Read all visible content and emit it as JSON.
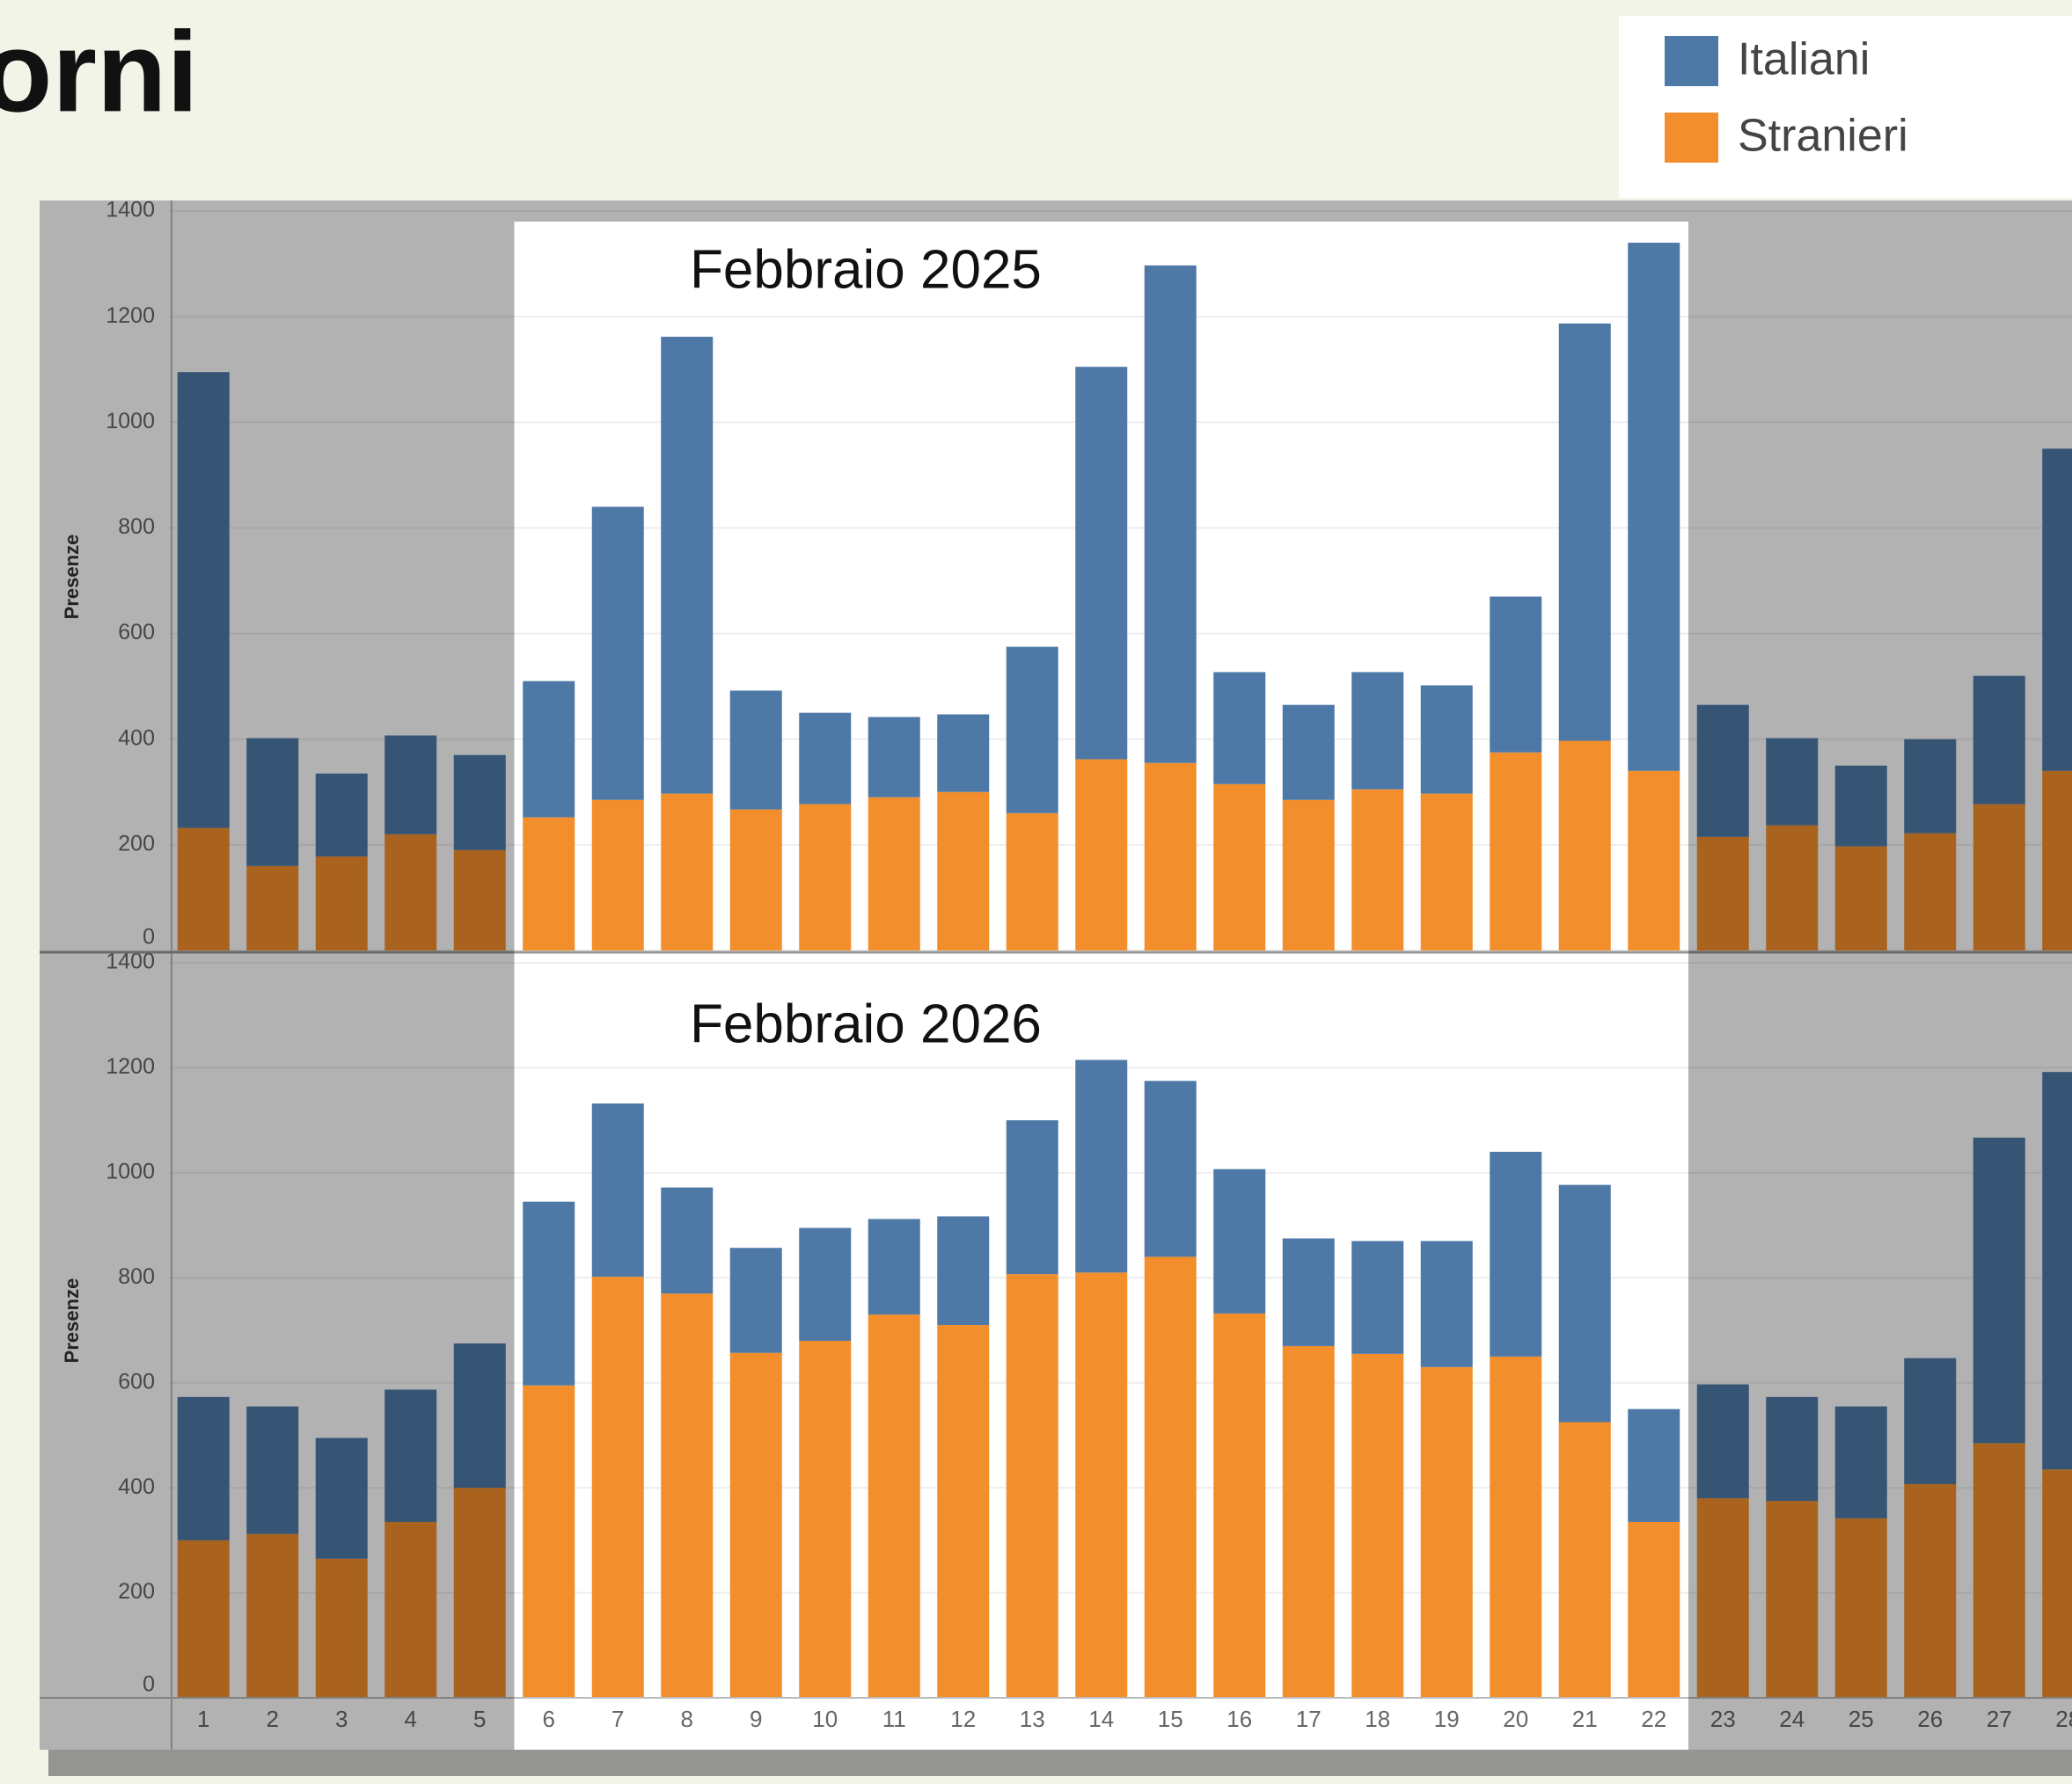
{
  "title": "orni",
  "chart_data": [
    {
      "type": "bar-stacked",
      "subtitle": "Febbraio 2025",
      "ylabel": "Presenze",
      "categories": [
        "1",
        "2",
        "3",
        "4",
        "5",
        "6",
        "7",
        "8",
        "9",
        "10",
        "11",
        "12",
        "13",
        "14",
        "15",
        "16",
        "17",
        "18",
        "19",
        "20",
        "21",
        "22",
        "23",
        "24",
        "25",
        "26",
        "27",
        "28"
      ],
      "highlight": [
        "6",
        "22"
      ],
      "series": [
        {
          "name": "Italiani",
          "color": "#4e79a7",
          "values": [
            863,
            242,
            157,
            187,
            180,
            258,
            555,
            865,
            225,
            173,
            152,
            147,
            315,
            743,
            942,
            212,
            180,
            222,
            205,
            295,
            790,
            1000,
            250,
            165,
            153,
            178,
            243,
            610
          ]
        },
        {
          "name": "Stranieri",
          "color": "#f28e2b",
          "values": [
            232,
            160,
            178,
            220,
            190,
            252,
            285,
            297,
            267,
            277,
            290,
            300,
            260,
            362,
            355,
            315,
            285,
            305,
            297,
            375,
            397,
            340,
            215,
            237,
            197,
            222,
            277,
            340
          ]
        }
      ],
      "ylim": [
        0,
        1400
      ],
      "yticks": [
        0,
        200,
        400,
        600,
        800,
        1000,
        1200,
        1400
      ],
      "grid": true
    },
    {
      "type": "bar-stacked",
      "subtitle": "Febbraio 2026",
      "ylabel": "Presenze",
      "highlight": [
        "6",
        "22"
      ],
      "series": [
        {
          "name": "Italiani",
          "color": "#4e79a7",
          "values": [
            273,
            243,
            230,
            252,
            275,
            350,
            330,
            202,
            200,
            215,
            182,
            207,
            293,
            405,
            335,
            275,
            205,
            215,
            240,
            390,
            452,
            215,
            217,
            198,
            213,
            240,
            582,
            757
          ]
        },
        {
          "name": "Stranieri",
          "color": "#f28e2b",
          "values": [
            300,
            312,
            265,
            335,
            400,
            595,
            802,
            770,
            657,
            680,
            730,
            710,
            807,
            810,
            840,
            732,
            670,
            655,
            630,
            650,
            525,
            335,
            380,
            375,
            342,
            407,
            485,
            435
          ]
        }
      ],
      "ylim": [
        0,
        1400
      ],
      "yticks": [
        0,
        200,
        400,
        600,
        800,
        1000,
        1200,
        1400
      ],
      "grid": true
    }
  ]
}
